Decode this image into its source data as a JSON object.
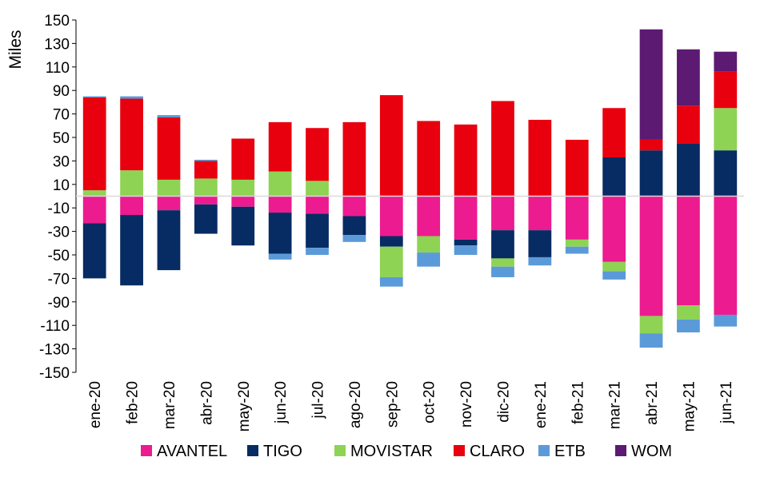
{
  "chart_data": {
    "type": "bar",
    "stacked": true,
    "ylabel": "Miles",
    "xlabel": "",
    "ylim": [
      -150,
      150
    ],
    "yticks": [
      150,
      130,
      110,
      90,
      70,
      50,
      30,
      10,
      -10,
      -30,
      -50,
      -70,
      -90,
      -110,
      -130,
      -150
    ],
    "grid": false,
    "legend_position": "bottom",
    "categories": [
      "ene-20",
      "feb-20",
      "mar-20",
      "abr-20",
      "may-20",
      "jun-20",
      "jul-20",
      "ago-20",
      "sep-20",
      "oct-20",
      "nov-20",
      "dic-20",
      "ene-21",
      "feb-21",
      "mar-21",
      "abr-21",
      "may-21",
      "jun-21"
    ],
    "series": [
      {
        "name": "AVANTEL",
        "color": "#ec1b8f",
        "values": [
          -23,
          -16,
          -12,
          -7,
          -9,
          -14,
          -15,
          -17,
          -34,
          -34,
          -37,
          -29,
          -29,
          -37,
          -56,
          -102,
          -93,
          -101
        ]
      },
      {
        "name": "TIGO",
        "color": "#072b63",
        "values": [
          -47,
          -60,
          -51,
          -25,
          -33,
          -35,
          -29,
          -16,
          -9,
          0,
          -5,
          -24,
          -23,
          0,
          33,
          39,
          45,
          39
        ]
      },
      {
        "name": "MOVISTAR",
        "color": "#8ed354",
        "values": [
          5,
          22,
          14,
          15,
          14,
          21,
          13,
          0,
          -26,
          -14,
          0,
          -7,
          0,
          -6,
          -8,
          -15,
          -12,
          36
        ]
      },
      {
        "name": "CLARO",
        "color": "#e8000e",
        "values": [
          79,
          61,
          53,
          15,
          35,
          42,
          45,
          63,
          86,
          64,
          61,
          81,
          65,
          48,
          42,
          9,
          32,
          31
        ]
      },
      {
        "name": "ETB",
        "color": "#5b9ad9",
        "values": [
          1,
          2,
          2,
          1,
          0,
          -5,
          -6,
          -6,
          -8,
          -12,
          -8,
          -9,
          -7,
          -6,
          -7,
          -12,
          -11,
          -10
        ]
      },
      {
        "name": "WOM",
        "color": "#5c1a72",
        "values": [
          0,
          0,
          0,
          0,
          0,
          0,
          0,
          0,
          0,
          0,
          0,
          0,
          0,
          0,
          0,
          94,
          48,
          17
        ]
      }
    ]
  }
}
